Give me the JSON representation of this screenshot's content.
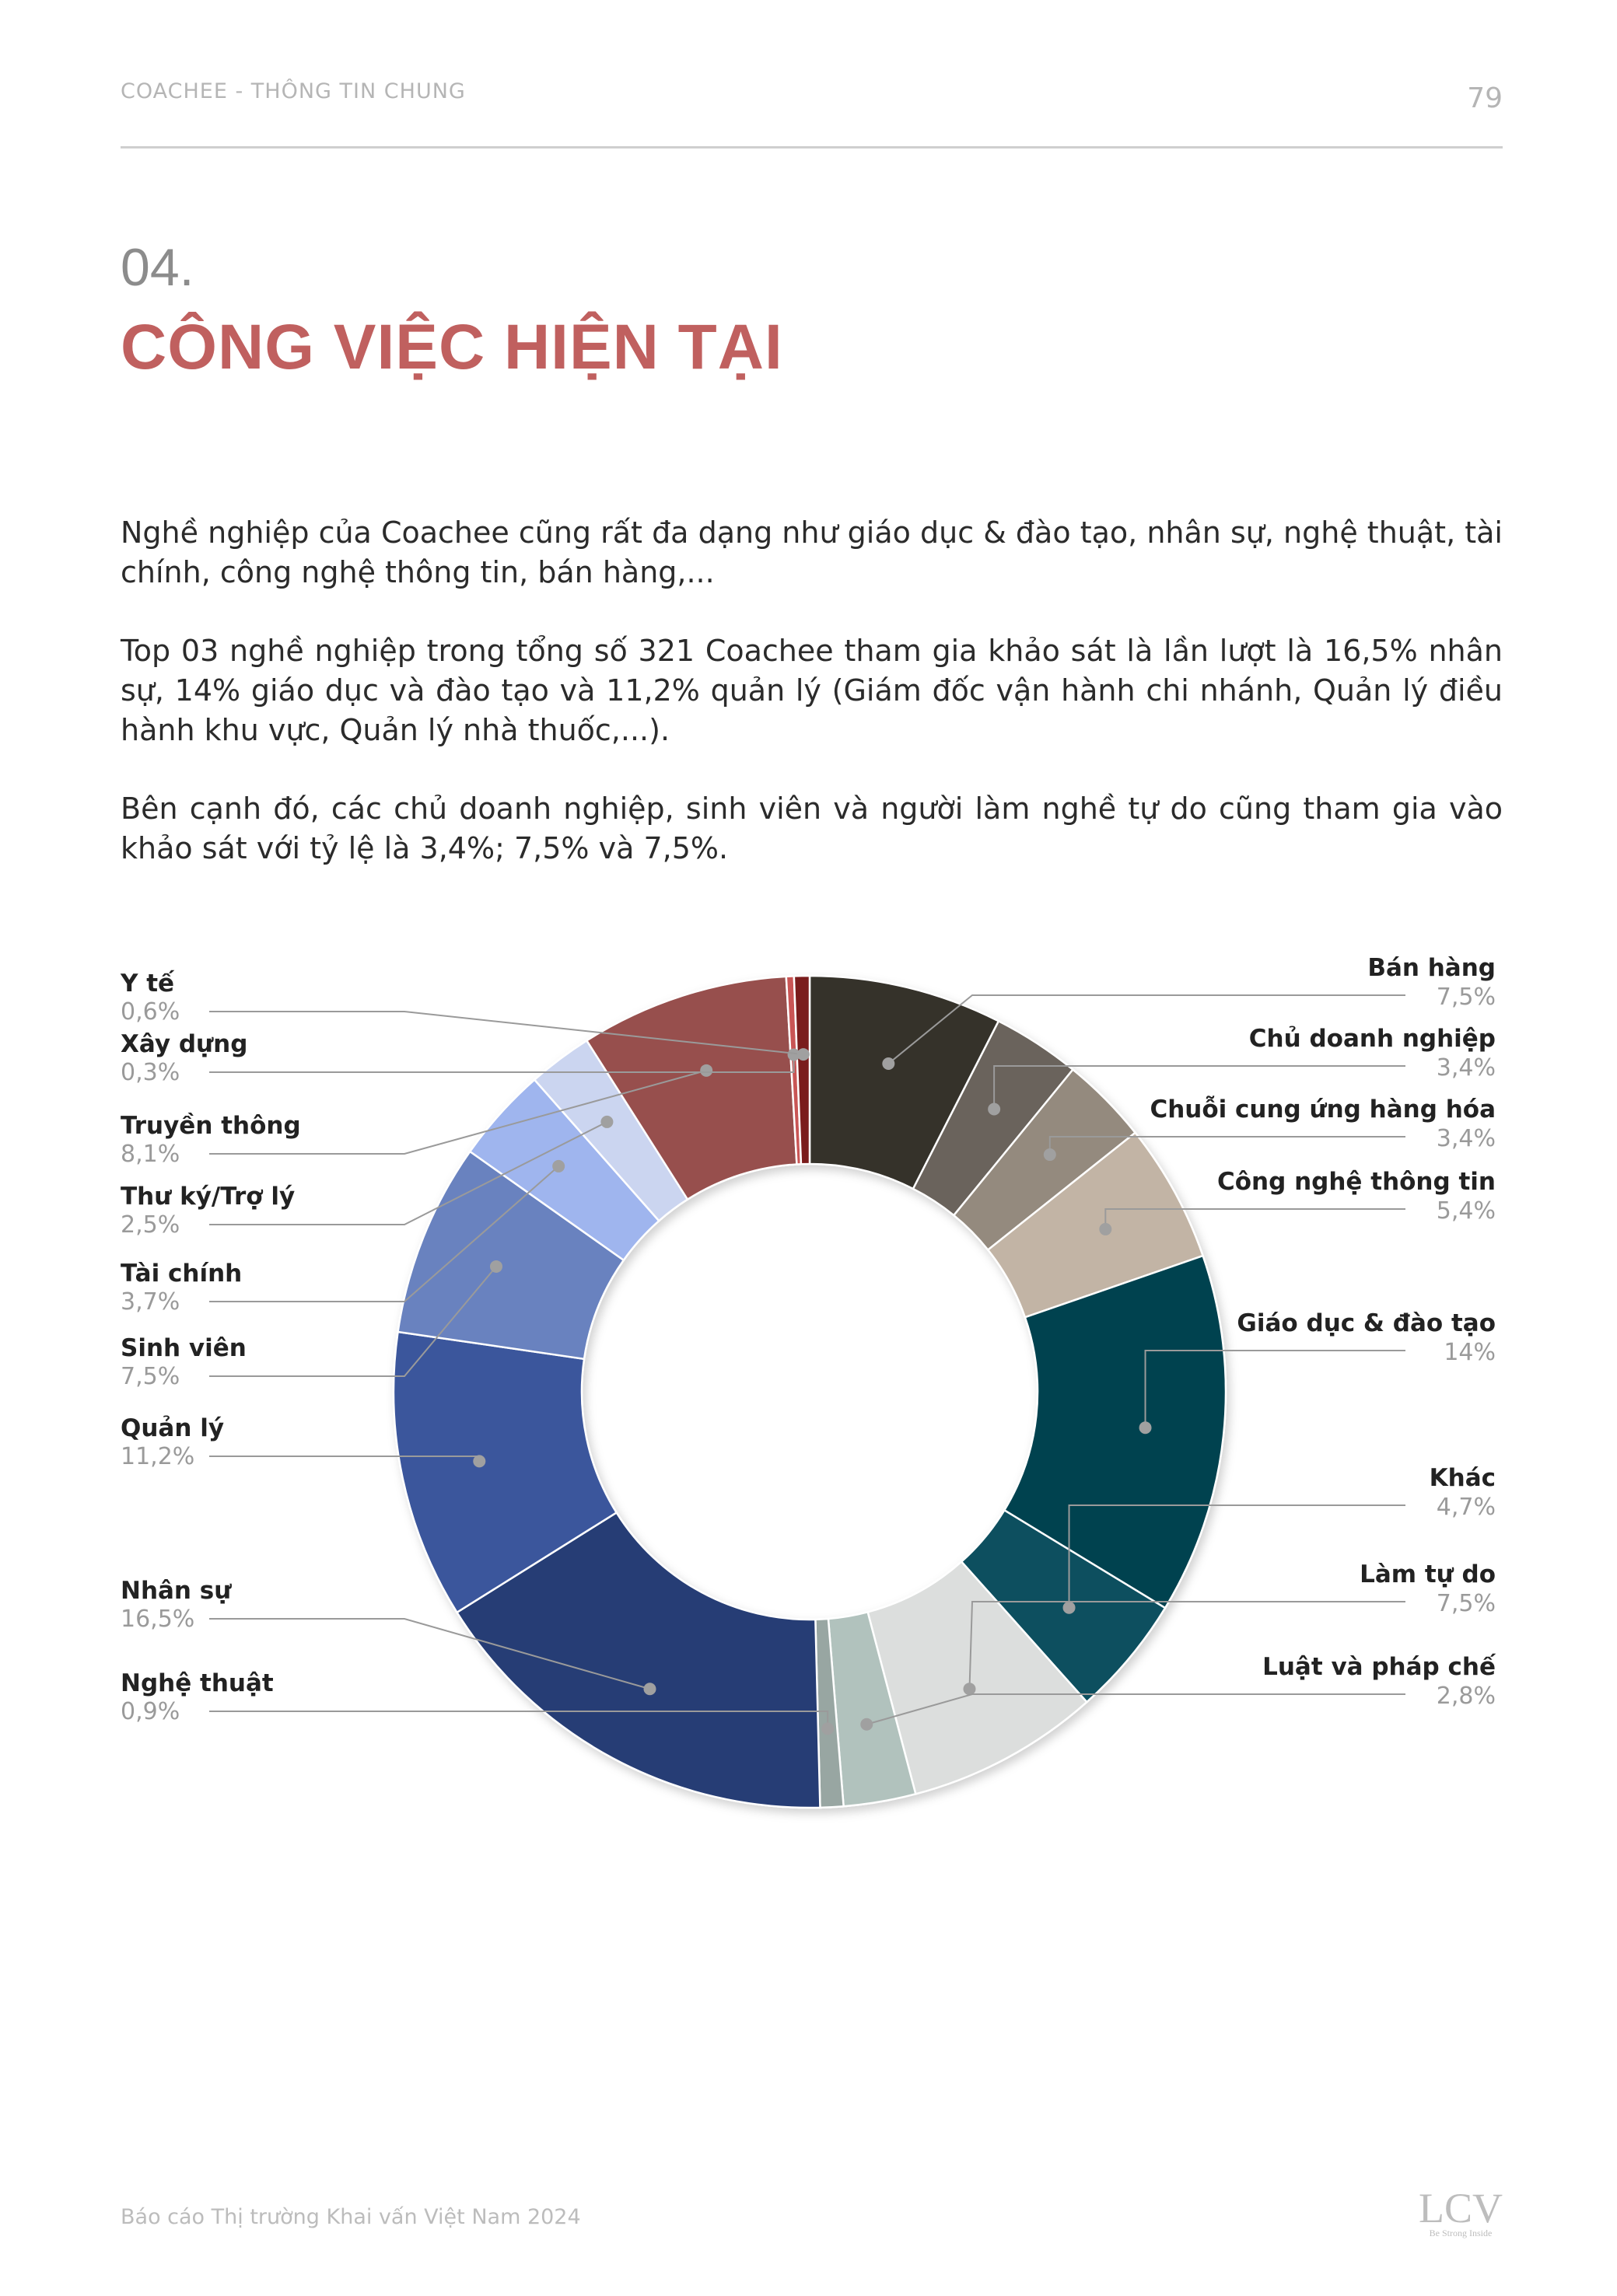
{
  "header": {
    "section": "COACHEE - THÔNG TIN CHUNG",
    "page_number": "79"
  },
  "section_number": "04.",
  "title": "CÔNG VIỆC HIỆN TẠI",
  "paragraphs": [
    "Nghề nghiệp của Coachee cũng rất đa dạng như giáo dục & đào tạo, nhân sự, nghệ thuật, tài chính, công nghệ thông tin, bán hàng,...",
    "Top 03 nghề nghiệp trong tổng số 321 Coachee tham gia khảo sát là lần lượt là 16,5% nhân sự, 14% giáo dục và đào tạo và 11,2% quản lý (Giám đốc vận hành chi nhánh, Quản lý điều hành khu vực, Quản lý nhà thuốc,...).",
    "Bên cạnh đó, các chủ doanh nghiệp, sinh viên và người làm nghề tự do cũng tham gia vào khảo sát với tỷ lệ là 3,4%; 7,5% và 7,5%."
  ],
  "chart_data": {
    "type": "pie",
    "variant": "donut",
    "unit": "%",
    "slices": [
      {
        "label": "Bán hàng",
        "value": 7.5,
        "display": "7,5%",
        "color": "#34302c",
        "side": "right"
      },
      {
        "label": "Chủ doanh nghiệp",
        "value": 3.4,
        "display": "3,4%",
        "color": "#6b645b",
        "side": "right"
      },
      {
        "label": "Chuỗi cung ứng hàng hóa",
        "value": 3.4,
        "display": "3,4%",
        "color": "#948a7e",
        "side": "right"
      },
      {
        "label": "Công nghệ thông tin",
        "value": 5.4,
        "display": "5,4%",
        "color": "#c2b4a5",
        "side": "right"
      },
      {
        "label": "Giáo dục & đào tạo",
        "value": 14,
        "display": "14%",
        "color": "#02424f",
        "side": "right"
      },
      {
        "label": "Khác",
        "value": 4.7,
        "display": "4,7%",
        "color": "#0b4f5f",
        "side": "right"
      },
      {
        "label": "Làm tự do",
        "value": 7.5,
        "display": "7,5%",
        "color": "#dcdedd",
        "side": "right"
      },
      {
        "label": "Luật và pháp chế",
        "value": 2.8,
        "display": "2,8%",
        "color": "#b1c2bd",
        "side": "right"
      },
      {
        "label": "Nghệ thuật",
        "value": 0.9,
        "display": "0,9%",
        "color": "#98a6a2",
        "side": "left"
      },
      {
        "label": "Nhân sự",
        "value": 16.5,
        "display": "16,5%",
        "color": "#263d75",
        "side": "left"
      },
      {
        "label": "Quản lý",
        "value": 11.2,
        "display": "11,2%",
        "color": "#3a569c",
        "side": "left"
      },
      {
        "label": "Sinh viên",
        "value": 7.5,
        "display": "7,5%",
        "color": "#6982bf",
        "side": "left"
      },
      {
        "label": "Tài chính",
        "value": 3.7,
        "display": "3,7%",
        "color": "#9fb5ee",
        "side": "left"
      },
      {
        "label": "Thư ký/Trợ lý",
        "value": 2.5,
        "display": "2,5%",
        "color": "#cbd5f0",
        "side": "left"
      },
      {
        "label": "Truyền thông",
        "value": 8.1,
        "display": "8,1%",
        "color": "#974f4d",
        "side": "left"
      },
      {
        "label": "Xây dựng",
        "value": 0.3,
        "display": "0,3%",
        "color": "#c95555",
        "side": "left"
      },
      {
        "label": "Y tế",
        "value": 0.6,
        "display": "0,6%",
        "color": "#7a1a1a",
        "side": "left"
      }
    ]
  },
  "footer": {
    "text": "Báo cáo Thị trường Khai vấn Việt Nam 2024",
    "logo": "LCV",
    "logo_tagline": "Be Strong Inside"
  }
}
